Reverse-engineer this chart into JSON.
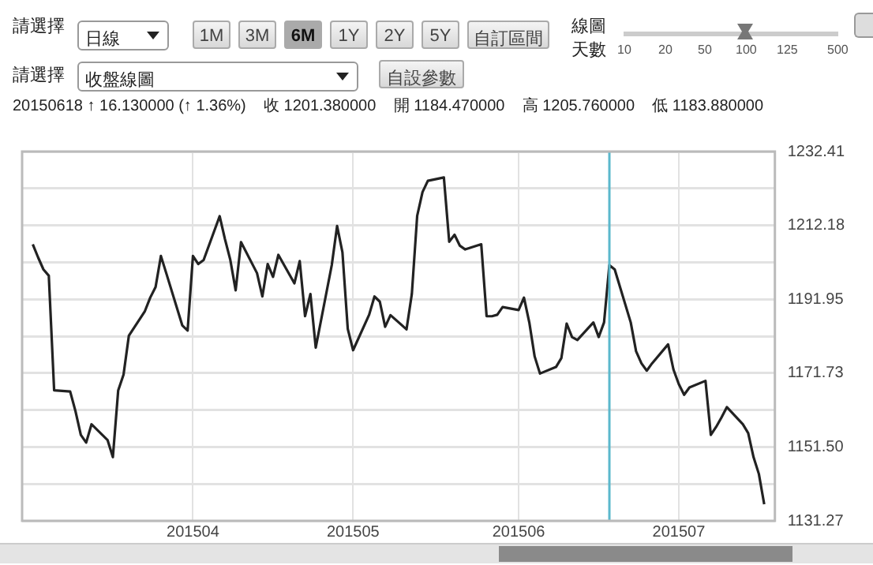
{
  "chart_data": {
    "type": "line",
    "subtitle": "20150618 ↑ 16.130000 (↑ 1.36%)    收 1201.380000    開 1184.470000    高 1205.760000    低 1183.880000",
    "annotations": [
      "請選擇",
      "日線",
      "1M",
      "3M",
      "6M",
      "1Y",
      "2Y",
      "5Y",
      "自訂區間",
      "線圖",
      "天數",
      "10",
      "20",
      "50",
      "100",
      "125",
      "500",
      "請選擇",
      "收盤線圖",
      "自設參數"
    ],
    "x": [
      "2015-03-02",
      "2015-03-03",
      "2015-03-04",
      "2015-03-05",
      "2015-03-06",
      "2015-03-09",
      "2015-03-10",
      "2015-03-11",
      "2015-03-12",
      "2015-03-13",
      "2015-03-16",
      "2015-03-17",
      "2015-03-18",
      "2015-03-19",
      "2015-03-20",
      "2015-03-23",
      "2015-03-24",
      "2015-03-25",
      "2015-03-26",
      "2015-03-27",
      "2015-03-30",
      "2015-03-31",
      "2015-04-01",
      "2015-04-02",
      "2015-04-03",
      "2015-04-06",
      "2015-04-07",
      "2015-04-08",
      "2015-04-09",
      "2015-04-10",
      "2015-04-13",
      "2015-04-14",
      "2015-04-15",
      "2015-04-16",
      "2015-04-17",
      "2015-04-20",
      "2015-04-21",
      "2015-04-22",
      "2015-04-23",
      "2015-04-24",
      "2015-04-27",
      "2015-04-28",
      "2015-04-29",
      "2015-04-30",
      "2015-05-01",
      "2015-05-04",
      "2015-05-05",
      "2015-05-06",
      "2015-05-07",
      "2015-05-08",
      "2015-05-11",
      "2015-05-12",
      "2015-05-13",
      "2015-05-14",
      "2015-05-15",
      "2015-05-18",
      "2015-05-19",
      "2015-05-20",
      "2015-05-21",
      "2015-05-22",
      "2015-05-25",
      "2015-05-26",
      "2015-05-27",
      "2015-05-28",
      "2015-05-29",
      "2015-06-01",
      "2015-06-02",
      "2015-06-03",
      "2015-06-04",
      "2015-06-05",
      "2015-06-08",
      "2015-06-09",
      "2015-06-10",
      "2015-06-11",
      "2015-06-12",
      "2015-06-15",
      "2015-06-16",
      "2015-06-17",
      "2015-06-18",
      "2015-06-19",
      "2015-06-22",
      "2015-06-23",
      "2015-06-24",
      "2015-06-25",
      "2015-06-26",
      "2015-06-29",
      "2015-06-30",
      "2015-07-01",
      "2015-07-02",
      "2015-07-03",
      "2015-07-06",
      "2015-07-07",
      "2015-07-08",
      "2015-07-09",
      "2015-07-10",
      "2015-07-13",
      "2015-07-14",
      "2015-07-15",
      "2015-07-16",
      "2015-07-17"
    ],
    "values": [
      1207.0,
      1203.4,
      1200.1,
      1198.4,
      1167.0,
      1166.7,
      1161.3,
      1154.8,
      1152.7,
      1157.7,
      1153.4,
      1148.7,
      1167.0,
      1171.3,
      1182.0,
      1188.7,
      1192.4,
      1195.3,
      1203.8,
      1199.1,
      1184.8,
      1183.4,
      1203.8,
      1201.6,
      1202.7,
      1214.7,
      1208.4,
      1202.7,
      1194.4,
      1207.6,
      1199.1,
      1192.7,
      1201.6,
      1198.1,
      1204.1,
      1196.3,
      1202.4,
      1187.3,
      1193.4,
      1178.7,
      1201.3,
      1212.0,
      1204.8,
      1183.8,
      1178.0,
      1187.7,
      1192.7,
      1191.3,
      1184.4,
      1187.6,
      1183.7,
      1193.4,
      1214.8,
      1221.3,
      1224.4,
      1225.3,
      1207.7,
      1209.6,
      1206.6,
      1205.6,
      1207.0,
      1187.3,
      1187.3,
      1187.7,
      1189.8,
      1189.0,
      1192.4,
      1185.6,
      1176.3,
      1171.6,
      1173.4,
      1175.8,
      1185.3,
      1181.6,
      1180.8,
      1185.6,
      1181.6,
      1185.6,
      1201.3,
      1200.1,
      1185.6,
      1177.7,
      1174.4,
      1172.4,
      1174.4,
      1179.6,
      1172.7,
      1168.7,
      1165.8,
      1167.8,
      1169.6,
      1154.8,
      1157.0,
      1159.6,
      1162.4,
      1157.7,
      1155.3,
      1148.7,
      1144.1,
      1135.8
    ],
    "color": "#222222",
    "xlim": [
      "2015-02-28",
      "2015-07-19"
    ],
    "xticks": [
      {
        "value": "2015-04-01",
        "label": "201504"
      },
      {
        "value": "2015-05-01",
        "label": "201505"
      },
      {
        "value": "2015-06-01",
        "label": "201506"
      },
      {
        "value": "2015-07-01",
        "label": "201507"
      }
    ],
    "ylim": [
      1131.27,
      1232.41
    ],
    "yticks": [
      1131.27,
      {
        "value": 1141.385,
        "label": null
      },
      {
        "value": 1151.5,
        "label": "1151.50"
      },
      {
        "value": 1161.615,
        "label": null
      },
      1171.73,
      {
        "value": 1181.84,
        "label": null
      },
      1191.95,
      {
        "value": 1202.065,
        "label": null
      },
      1212.18,
      {
        "value": 1222.295,
        "label": null
      },
      1232.41
    ],
    "ref_lines": [
      {
        "axis": "x",
        "value": "2015-06-18",
        "color": "#5bb8cc"
      }
    ],
    "grid": true
  }
}
